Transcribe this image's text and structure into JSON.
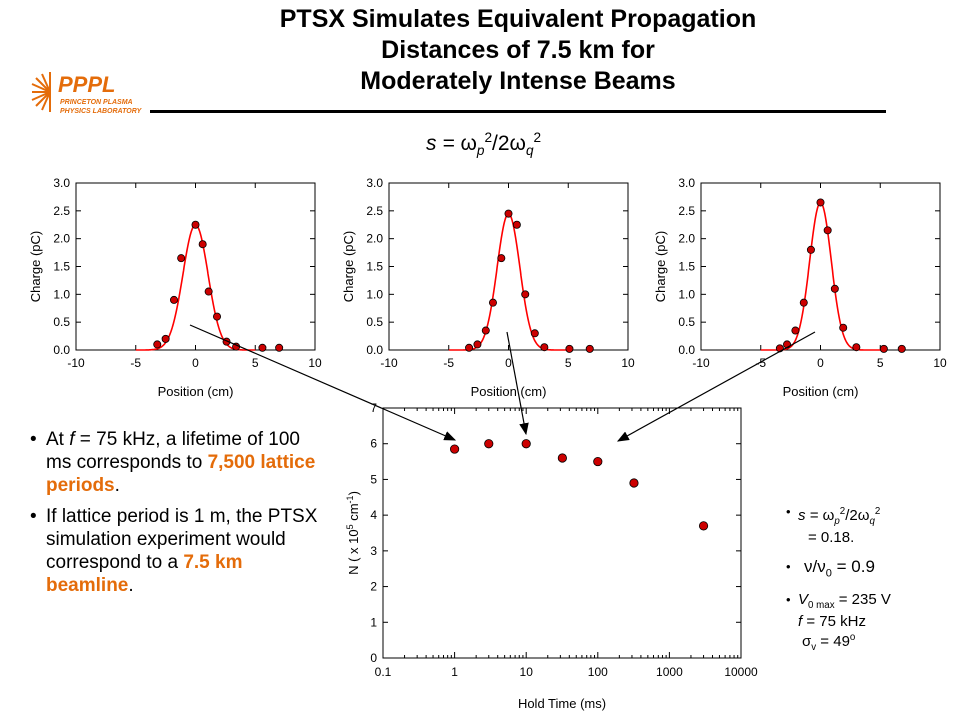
{
  "title": {
    "line1": "PTSX Simulates Equivalent Propagation",
    "line2": "Distances of 7.5 km for",
    "line3": "Moderately Intense Beams"
  },
  "logo": {
    "text": "PPPL",
    "sub1": "PRINCETON PLASMA",
    "sub2": "PHYSICS LABORATORY"
  },
  "equation_top": {
    "prefix": "s = ",
    "w1": "ω",
    "p": "p",
    "two": "2",
    "mid": "/2",
    "w2": "ω",
    "q": "q",
    "two2": "2"
  },
  "bullets": {
    "b1_a": "At ",
    "b1_f": "f",
    "b1_b": " = 75 kHz, a lifetime of 100 ms corresponds to ",
    "b1_hl": "7,500 lattice periods",
    "b1_c": ".",
    "b2_a": "If lattice period is 1 m, the PTSX simulation experiment would correspond to a ",
    "b2_hl": "7.5 km beamline",
    "b2_c": "."
  },
  "params": {
    "s_a": "s = ",
    "s_w1": "ω",
    "s_p": "p",
    "s_2": "2",
    "s_mid": "/2",
    "s_w2": "ω",
    "s_q": "q",
    "s_22": "2",
    "s_val": "= 0.18.",
    "nu_a": "ν",
    "nu_b": "/ν",
    "nu_0": "0",
    "nu_val": " = 0.9",
    "v_a": "V",
    "v_sub": "0 max",
    "v_val": " = 235 V",
    "f_a": "f",
    "f_val": " = 75 kHz",
    "sig_a": "σ",
    "sig_sub": "v",
    "sig_val": " = 49",
    "sig_deg": "o"
  },
  "colors": {
    "accent": "#e46c0a",
    "marker": "#cc0000",
    "curve": "#ff0000"
  },
  "chart_data": [
    {
      "type": "scatter",
      "xlabel": "Position (cm)",
      "ylabel": "Charge (pC)",
      "xlim": [
        -10,
        10
      ],
      "ylim": [
        0,
        3.0
      ],
      "xticks": [
        -10,
        -5,
        0,
        5,
        10
      ],
      "yticks": [
        0.0,
        0.5,
        1.0,
        1.5,
        2.0,
        2.5,
        3.0
      ],
      "points": [
        [
          -3.2,
          0.1
        ],
        [
          -2.5,
          0.2
        ],
        [
          -1.8,
          0.9
        ],
        [
          -1.2,
          1.65
        ],
        [
          0,
          2.25
        ],
        [
          0.6,
          1.9
        ],
        [
          1.1,
          1.05
        ],
        [
          1.8,
          0.6
        ],
        [
          2.6,
          0.15
        ],
        [
          3.4,
          0.06
        ],
        [
          5.6,
          0.04
        ],
        [
          7.0,
          0.04
        ]
      ],
      "fit": {
        "amplitude": 2.25,
        "center": 0,
        "sigma": 1.05
      }
    },
    {
      "type": "scatter",
      "xlabel": "Position (cm)",
      "ylabel": "Charge (pC)",
      "xlim": [
        -10,
        10
      ],
      "ylim": [
        0,
        3.0
      ],
      "xticks": [
        -10,
        -5,
        0,
        5,
        10
      ],
      "yticks": [
        0.0,
        0.5,
        1.0,
        1.5,
        2.0,
        2.5,
        3.0
      ],
      "points": [
        [
          -3.3,
          0.04
        ],
        [
          -2.6,
          0.1
        ],
        [
          -1.9,
          0.35
        ],
        [
          -1.3,
          0.85
        ],
        [
          -0.6,
          1.65
        ],
        [
          0,
          2.45
        ],
        [
          0.7,
          2.25
        ],
        [
          1.4,
          1.0
        ],
        [
          2.2,
          0.3
        ],
        [
          3.0,
          0.05
        ],
        [
          5.1,
          0.02
        ],
        [
          6.8,
          0.02
        ]
      ],
      "fit": {
        "amplitude": 2.45,
        "center": 0,
        "sigma": 0.95
      }
    },
    {
      "type": "scatter",
      "xlabel": "Position (cm)",
      "ylabel": "Charge (pC)",
      "xlim": [
        -10,
        10
      ],
      "ylim": [
        0,
        3.0
      ],
      "xticks": [
        -10,
        -5,
        0,
        5,
        10
      ],
      "yticks": [
        0.0,
        0.5,
        1.0,
        1.5,
        2.0,
        2.5,
        3.0
      ],
      "points": [
        [
          -3.4,
          0.03
        ],
        [
          -2.8,
          0.1
        ],
        [
          -2.1,
          0.35
        ],
        [
          -1.4,
          0.85
        ],
        [
          -0.8,
          1.8
        ],
        [
          0,
          2.65
        ],
        [
          0.6,
          2.15
        ],
        [
          1.2,
          1.1
        ],
        [
          1.9,
          0.4
        ],
        [
          3.0,
          0.05
        ],
        [
          5.3,
          0.02
        ],
        [
          6.8,
          0.02
        ]
      ],
      "fit": {
        "amplitude": 2.65,
        "center": 0,
        "sigma": 0.9
      }
    },
    {
      "type": "scatter",
      "xlabel": "Hold Time (ms)",
      "ylabel": "N ( x 10^5 cm^-1)",
      "ylabel_parts": {
        "a": "N ( x 10",
        "sup1": "5",
        "b": " cm",
        "sup2": "-1",
        "c": ")"
      },
      "xscale": "log",
      "xlim": [
        0.1,
        10000
      ],
      "ylim": [
        0,
        7
      ],
      "xticks": [
        0.1,
        1,
        10,
        100,
        1000,
        10000
      ],
      "xticklabels": [
        "0.1",
        "1",
        "10",
        "100",
        "1000",
        "10000"
      ],
      "yticks": [
        0,
        1,
        2,
        3,
        4,
        5,
        6,
        7
      ],
      "x": [
        1,
        3,
        10,
        32,
        100,
        320,
        3000
      ],
      "y": [
        5.85,
        6.0,
        6.0,
        5.6,
        5.5,
        4.9,
        3.7
      ]
    }
  ]
}
